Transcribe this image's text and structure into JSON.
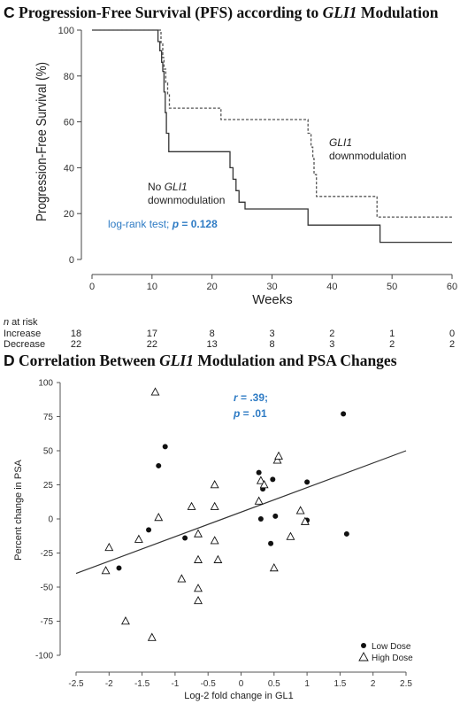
{
  "panel_c": {
    "title_letter": "C",
    "title_pre": "Progression-Free Survival (PFS) according to ",
    "title_gene": "GLI1",
    "title_post": " Modulation"
  },
  "panel_d": {
    "title_letter": "D",
    "title_pre": "Correlation Between ",
    "title_gene": "GLI1",
    "title_post": " Modulation and PSA Changes"
  },
  "chart_data": [
    {
      "type": "line",
      "subtype": "kaplan-meier step",
      "xlabel": "Weeks",
      "ylabel": "Progression-Free Survival (%)",
      "xlim": [
        0,
        60
      ],
      "ylim": [
        0,
        100
      ],
      "xticks": [
        0,
        10,
        20,
        30,
        40,
        50,
        60
      ],
      "yticks": [
        0,
        20,
        40,
        60,
        80,
        100
      ],
      "series": [
        {
          "label_line1": "No",
          "label_gene": "GLI1",
          "label_line2": "downmodulation",
          "style": "solid",
          "color": "#333333",
          "steps": [
            [
              0,
              100
            ],
            [
              11.0,
              100
            ],
            [
              11.0,
              95
            ],
            [
              11.3,
              95
            ],
            [
              11.3,
              91
            ],
            [
              11.6,
              91
            ],
            [
              11.6,
              86
            ],
            [
              11.8,
              86
            ],
            [
              11.8,
              82
            ],
            [
              12.0,
              82
            ],
            [
              12.0,
              73
            ],
            [
              12.2,
              73
            ],
            [
              12.2,
              64
            ],
            [
              12.4,
              64
            ],
            [
              12.4,
              55
            ],
            [
              12.8,
              55
            ],
            [
              12.8,
              47
            ],
            [
              23.0,
              47
            ],
            [
              23.0,
              40
            ],
            [
              23.5,
              40
            ],
            [
              23.5,
              35
            ],
            [
              24.0,
              35
            ],
            [
              24.0,
              30
            ],
            [
              24.5,
              30
            ],
            [
              24.5,
              25
            ],
            [
              25.5,
              25
            ],
            [
              25.5,
              22
            ],
            [
              36.0,
              22
            ],
            [
              36.0,
              15
            ],
            [
              48.0,
              15
            ],
            [
              48.0,
              7.5
            ],
            [
              60,
              7.5
            ]
          ]
        },
        {
          "label_gene": "GLI1",
          "label_line2": "downmodulation",
          "style": "dashed",
          "color": "#555555",
          "steps": [
            [
              0,
              100
            ],
            [
              11.5,
              100
            ],
            [
              11.5,
              94
            ],
            [
              11.8,
              94
            ],
            [
              11.8,
              88
            ],
            [
              12.0,
              88
            ],
            [
              12.0,
              83
            ],
            [
              12.3,
              83
            ],
            [
              12.3,
              77
            ],
            [
              12.6,
              77
            ],
            [
              12.6,
              72
            ],
            [
              12.9,
              72
            ],
            [
              12.9,
              66
            ],
            [
              21.5,
              66
            ],
            [
              21.5,
              61
            ],
            [
              36.0,
              61
            ],
            [
              36.0,
              55
            ],
            [
              36.5,
              55
            ],
            [
              36.5,
              49
            ],
            [
              36.8,
              49
            ],
            [
              36.8,
              44
            ],
            [
              37.0,
              44
            ],
            [
              37.0,
              37
            ],
            [
              37.4,
              37
            ],
            [
              37.4,
              27.5
            ],
            [
              47.5,
              27.5
            ],
            [
              47.5,
              18.5
            ],
            [
              60,
              18.5
            ]
          ]
        }
      ],
      "annotation_pre": "log-rank test;  ",
      "annotation_p": "p",
      "annotation_val": " = 0.128",
      "risk_table": {
        "header_italic": "n",
        "header_rest": " at risk",
        "rows": [
          {
            "label": "Increase",
            "values": [
              "18",
              "17",
              "8",
              "3",
              "2",
              "1",
              "0"
            ]
          },
          {
            "label": "Decrease",
            "values": [
              "22",
              "22",
              "13",
              "8",
              "3",
              "2",
              "2"
            ]
          }
        ]
      }
    },
    {
      "type": "scatter",
      "xlabel": "Log-2 fold change in GL1",
      "ylabel": "Percent change in PSA",
      "xlim": [
        -2.5,
        2.5
      ],
      "ylim": [
        -100,
        100
      ],
      "xticks": [
        "-2.5",
        "-2",
        "-1.5",
        "-1",
        "-0.5",
        "0",
        "0.5",
        "1",
        "1.5",
        "2",
        "2.5"
      ],
      "yticks": [
        "100",
        "75",
        "50",
        "25",
        "0",
        "-25",
        "-50",
        "-75",
        "-100"
      ],
      "annotation_r": "r",
      "annotation_r_val": " = .39;",
      "annotation_p": "p",
      "annotation_p_val": " = .01",
      "trendline": [
        [
          -2.5,
          -40
        ],
        [
          2.5,
          50
        ]
      ],
      "legend_position": "bottom-right",
      "series": [
        {
          "name": "Low Dose",
          "marker": "filled-circle",
          "points": [
            [
              -1.85,
              -36
            ],
            [
              -1.4,
              -8
            ],
            [
              -1.25,
              39
            ],
            [
              -1.15,
              53
            ],
            [
              -0.85,
              -14
            ],
            [
              0.27,
              34
            ],
            [
              0.3,
              0
            ],
            [
              0.33,
              22
            ],
            [
              0.45,
              -18
            ],
            [
              0.48,
              29
            ],
            [
              0.52,
              2
            ],
            [
              1.0,
              27
            ],
            [
              1.0,
              -1
            ],
            [
              1.55,
              77
            ],
            [
              1.6,
              -11
            ]
          ]
        },
        {
          "name": "High Dose",
          "marker": "open-triangle",
          "points": [
            [
              -2.05,
              -38
            ],
            [
              -2.0,
              -21
            ],
            [
              -1.75,
              -75
            ],
            [
              -1.55,
              -15
            ],
            [
              -1.35,
              -87
            ],
            [
              -1.3,
              93
            ],
            [
              -1.25,
              1
            ],
            [
              -0.9,
              -44
            ],
            [
              -0.75,
              9
            ],
            [
              -0.65,
              -11
            ],
            [
              -0.65,
              -30
            ],
            [
              -0.65,
              -51
            ],
            [
              -0.65,
              -60
            ],
            [
              -0.4,
              -16
            ],
            [
              -0.4,
              9
            ],
            [
              -0.4,
              25
            ],
            [
              -0.35,
              -30
            ],
            [
              0.27,
              13
            ],
            [
              0.3,
              28
            ],
            [
              0.35,
              25
            ],
            [
              0.5,
              -36
            ],
            [
              0.55,
              43
            ],
            [
              0.57,
              46
            ],
            [
              0.75,
              -13
            ],
            [
              0.9,
              6
            ],
            [
              0.97,
              -2
            ]
          ]
        }
      ]
    }
  ]
}
